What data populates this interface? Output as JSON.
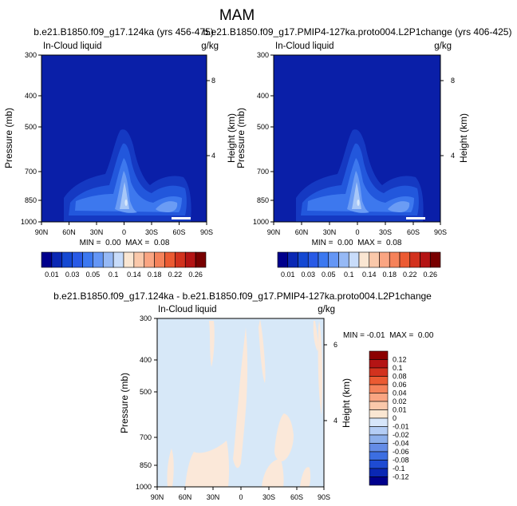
{
  "figure_title": "MAM",
  "chart_data": [
    {
      "type": "heatmap",
      "title": "b.e21.B1850.f09_g17.124ka (yrs 456-475)",
      "left_label": "In-Cloud liquid",
      "right_label": "g/kg",
      "xlabel": "",
      "ylabel": "Pressure (mb)",
      "ylabel_right": "Height (km)",
      "x_ticks": [
        "90N",
        "60N",
        "30N",
        "0",
        "30S",
        "60S",
        "90S"
      ],
      "y_ticks": [
        "300",
        "400",
        "500",
        "700",
        "850",
        "1000"
      ],
      "height_ticks": [
        "8",
        "4"
      ],
      "ylim": [
        300,
        1000
      ],
      "xlim": [
        90,
        -90
      ],
      "stats": "MIN =  0.00  MAX =  0.08",
      "contour_levels": [
        0.01,
        0.03,
        0.05,
        0.1,
        0.14,
        0.18,
        0.22,
        0.26
      ]
    },
    {
      "type": "heatmap",
      "title": "b.e21.B1850.f09_g17.PMIP4-127ka.proto004.L2P1change (yrs 406-425)",
      "left_label": "In-Cloud liquid",
      "right_label": "g/kg",
      "xlabel": "",
      "ylabel": "Pressure (mb)",
      "ylabel_right": "Height (km)",
      "x_ticks": [
        "90N",
        "60N",
        "30N",
        "0",
        "30S",
        "60S",
        "90S"
      ],
      "y_ticks": [
        "300",
        "400",
        "500",
        "700",
        "850",
        "1000"
      ],
      "height_ticks": [
        "8",
        "4"
      ],
      "ylim": [
        300,
        1000
      ],
      "xlim": [
        90,
        -90
      ],
      "stats": "MIN =  0.00  MAX =  0.08",
      "contour_levels": [
        0.01,
        0.03,
        0.05,
        0.1,
        0.14,
        0.18,
        0.22,
        0.26
      ]
    },
    {
      "type": "heatmap",
      "title": "b.e21.B1850.f09_g17.124ka - b.e21.B1850.f09_g17.PMIP4-127ka.proto004.L2P1change",
      "left_label": "In-Cloud liquid",
      "right_label": "g/kg",
      "xlabel": "",
      "ylabel": "Pressure (mb)",
      "ylabel_right": "Height (km)",
      "x_ticks": [
        "90N",
        "60N",
        "30N",
        "0",
        "30S",
        "60S",
        "90S"
      ],
      "y_ticks": [
        "300",
        "400",
        "500",
        "700",
        "850",
        "1000"
      ],
      "height_ticks": [
        "6",
        "4"
      ],
      "ylim": [
        300,
        1000
      ],
      "xlim": [
        90,
        -90
      ],
      "stats": "MIN = -0.01  MAX =  0.00",
      "contour_levels": [
        0.12,
        0.1,
        0.08,
        0.06,
        0.04,
        0.02,
        0.01,
        0,
        -0.01,
        -0.02,
        -0.04,
        -0.06,
        -0.08,
        -0.1,
        -0.12
      ]
    }
  ],
  "colorbar_top": {
    "labels": [
      "0.01",
      "0.03",
      "0.05",
      "0.1",
      "0.14",
      "0.18",
      "0.22",
      "0.26"
    ],
    "colors": [
      "#00008c",
      "#0a28b4",
      "#1448d2",
      "#285ae6",
      "#3c78f0",
      "#6496f5",
      "#96b9f5",
      "#c8dcfa",
      "#fae6d2",
      "#fac8aa",
      "#faa582",
      "#f5825a",
      "#eb5a32",
      "#d2321e",
      "#b41414",
      "#780000"
    ]
  },
  "colorbar_diff": {
    "labels": [
      "0.12",
      "0.1",
      "0.08",
      "0.06",
      "0.04",
      "0.02",
      "0.01",
      "0",
      "-0.01",
      "-0.02",
      "-0.04",
      "-0.06",
      "-0.08",
      "-0.1",
      "-0.12"
    ],
    "colors": [
      "#8c0000",
      "#b41414",
      "#d2321e",
      "#eb5a32",
      "#f5825a",
      "#faa582",
      "#fac8aa",
      "#fae6d2",
      "#d7e6fa",
      "#b4cdf5",
      "#8cafeb",
      "#648ce6",
      "#3c6ee1",
      "#1e4bd2",
      "#0a28b4",
      "#00008c"
    ]
  },
  "field_colors": {
    "base": "#0a1fa8",
    "c1": "#1539c2",
    "c2": "#2257dc",
    "c3": "#3d78ee",
    "c4": "#6b9cf4",
    "c5": "#a7c7f8",
    "c6": "#d9e9fb",
    "diff_bg": "#d7e8f8",
    "diff_pos": "#fbe8d9"
  }
}
